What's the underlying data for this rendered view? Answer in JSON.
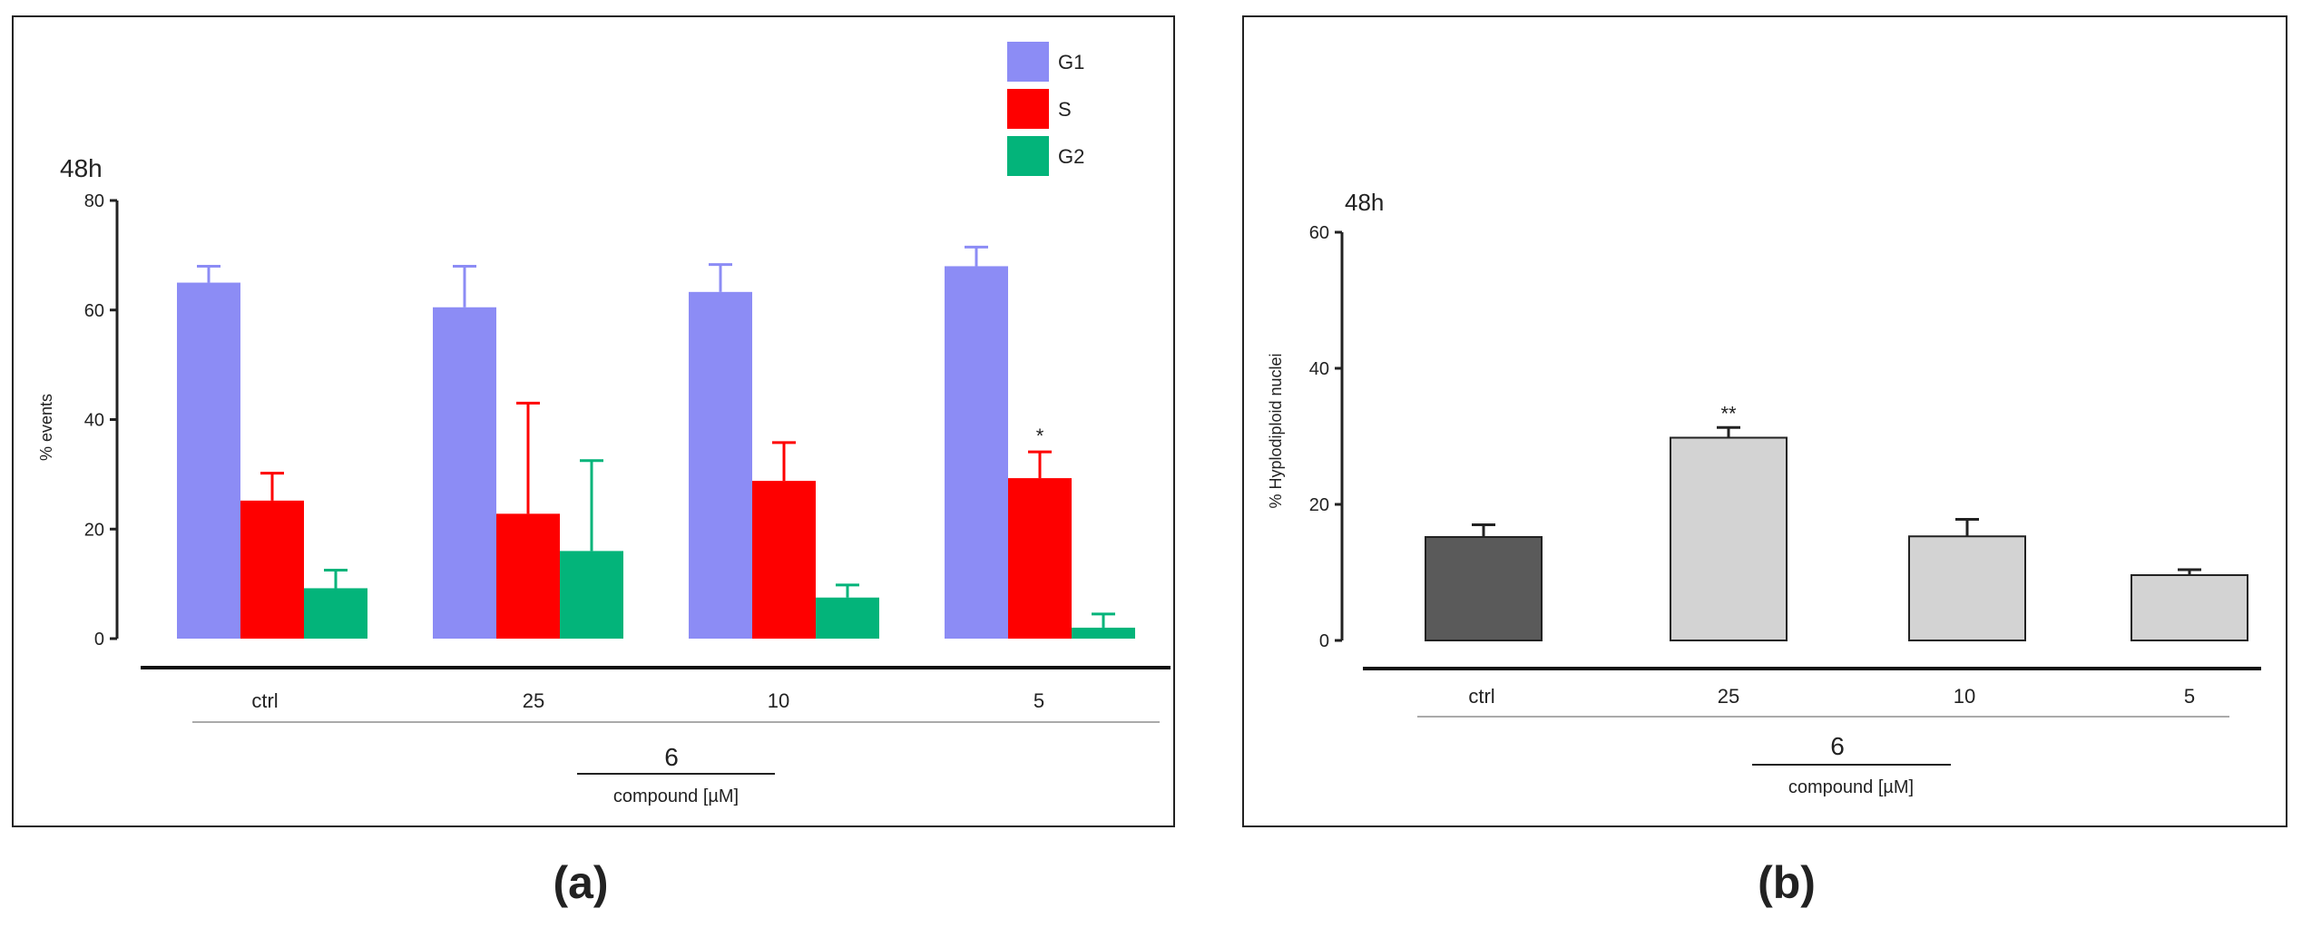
{
  "panels": [
    {
      "caption": "(a)",
      "time_label": "48h",
      "compound_number": "6",
      "compound_label": "compound [µM]"
    },
    {
      "caption": "(b)",
      "time_label": "48h",
      "compound_number": "6",
      "compound_label": "compound [µM]"
    }
  ],
  "chart_data": [
    {
      "type": "bar",
      "title": "48h",
      "xlabel": "compound [µM]",
      "ylabel": "% events",
      "ylim": [
        0,
        80
      ],
      "yticks": [
        0,
        20,
        40,
        60,
        80
      ],
      "grid": false,
      "legend_position": "top-right",
      "categories": [
        "ctrl",
        "25",
        "10",
        "5"
      ],
      "series": [
        {
          "name": "G1",
          "color": "#8c8cf5",
          "values": [
            65,
            60.5,
            63.3,
            68
          ],
          "errors": [
            3,
            7.5,
            5,
            3.5
          ]
        },
        {
          "name": "S",
          "color": "#fe0000",
          "values": [
            25.2,
            22.8,
            28.8,
            29.3
          ],
          "errors": [
            5,
            20.2,
            7,
            4.8
          ]
        },
        {
          "name": "G2",
          "color": "#03b47a",
          "values": [
            9.2,
            16,
            7.5,
            2
          ],
          "errors": [
            3.3,
            16.5,
            2.3,
            2.5
          ]
        }
      ],
      "annotations": [
        {
          "category": "5",
          "series": "S",
          "text": "*"
        }
      ]
    },
    {
      "type": "bar",
      "title": "48h",
      "xlabel": "compound [µM]",
      "ylabel": "% Hyplodiploid nuclei",
      "ylim": [
        0,
        60
      ],
      "yticks": [
        0,
        20,
        40,
        60
      ],
      "grid": false,
      "categories": [
        "ctrl",
        "25",
        "10",
        "5"
      ],
      "values": [
        15.2,
        29.8,
        15.3,
        9.6
      ],
      "errors": [
        1.8,
        1.5,
        2.5,
        0.8
      ],
      "bar_colors": [
        "#5a5a5a",
        "#d3d3d3",
        "#d3d3d3",
        "#d3d3d3"
      ],
      "annotations": [
        {
          "category": "25",
          "text": "**"
        }
      ]
    }
  ]
}
